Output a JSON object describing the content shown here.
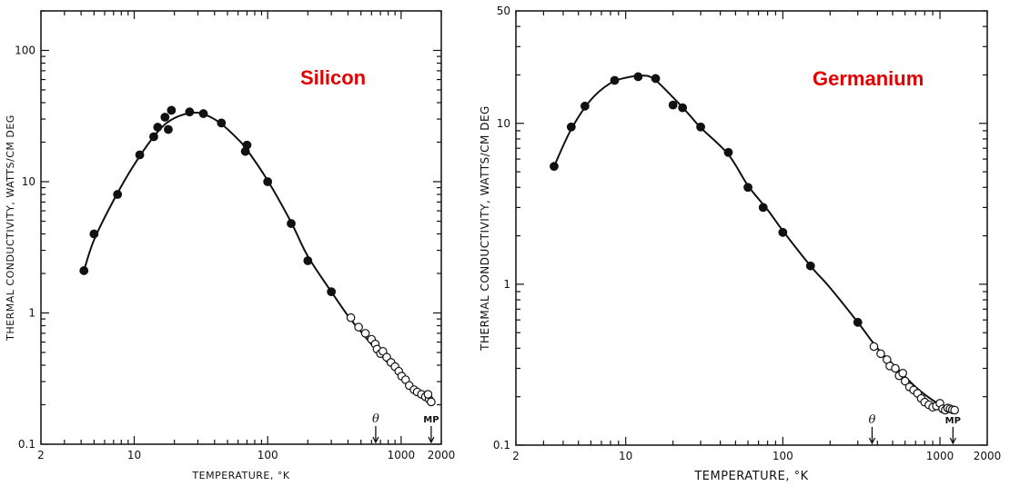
{
  "chart_data": [
    {
      "type": "scatter",
      "title": "Silicon",
      "xlabel": "TEMPERATURE, °K",
      "ylabel": "THERMAL CONDUCTIVITY, WATTS/CM DEG",
      "x_scale": "log",
      "y_scale": "log",
      "xlim": [
        2,
        2000
      ],
      "ylim": [
        0.1,
        200
      ],
      "x_ticks": [
        "2",
        "10",
        "100",
        "1000",
        "2000"
      ],
      "y_ticks": [
        "0.1",
        "1",
        "10",
        "100"
      ],
      "markers": [
        {
          "label": "θ",
          "x": 645
        },
        {
          "label": "MP",
          "x": 1680
        }
      ],
      "series": [
        {
          "marker": "filled-circle",
          "points": [
            [
              4.2,
              2.1
            ],
            [
              5,
              4.0
            ],
            [
              7.5,
              8.0
            ],
            [
              11,
              16
            ],
            [
              14,
              22
            ],
            [
              15,
              26
            ],
            [
              17,
              31
            ],
            [
              18,
              25
            ],
            [
              19,
              35
            ],
            [
              26,
              34
            ],
            [
              33,
              33
            ],
            [
              45,
              28
            ],
            [
              70,
              19
            ],
            [
              68,
              17
            ],
            [
              100,
              10
            ],
            [
              150,
              4.8
            ],
            [
              200,
              2.5
            ],
            [
              300,
              1.45
            ]
          ]
        },
        {
          "marker": "open-circle",
          "points": [
            [
              420,
              0.92
            ],
            [
              480,
              0.78
            ],
            [
              540,
              0.7
            ],
            [
              600,
              0.63
            ],
            [
              640,
              0.58
            ],
            [
              660,
              0.53
            ],
            [
              700,
              0.49
            ],
            [
              730,
              0.51
            ],
            [
              780,
              0.46
            ],
            [
              840,
              0.42
            ],
            [
              900,
              0.39
            ],
            [
              960,
              0.36
            ],
            [
              1010,
              0.33
            ],
            [
              1080,
              0.31
            ],
            [
              1150,
              0.28
            ],
            [
              1250,
              0.26
            ],
            [
              1320,
              0.25
            ],
            [
              1420,
              0.24
            ],
            [
              1520,
              0.23
            ],
            [
              1620,
              0.22
            ],
            [
              1680,
              0.21
            ],
            [
              1590,
              0.24
            ]
          ]
        }
      ],
      "curve": [
        [
          4.2,
          2.1
        ],
        [
          5,
          3.6
        ],
        [
          7,
          7.2
        ],
        [
          10,
          13.5
        ],
        [
          15,
          24
        ],
        [
          20,
          30.5
        ],
        [
          28,
          33.5
        ],
        [
          35,
          32
        ],
        [
          45,
          27.5
        ],
        [
          60,
          21
        ],
        [
          70,
          17.5
        ],
        [
          100,
          10.2
        ],
        [
          150,
          4.9
        ],
        [
          200,
          2.7
        ],
        [
          300,
          1.45
        ],
        [
          400,
          0.95
        ],
        [
          500,
          0.72
        ],
        [
          700,
          0.48
        ],
        [
          1000,
          0.33
        ],
        [
          1300,
          0.26
        ],
        [
          1700,
          0.21
        ]
      ]
    },
    {
      "type": "scatter",
      "title": "Germanium",
      "xlabel": "TEMPERATURE, °K",
      "ylabel": "THERMAL CONDUCTIVITY, WATTS/CM DEG",
      "x_scale": "log",
      "y_scale": "log",
      "xlim": [
        2,
        2000
      ],
      "ylim": [
        0.1,
        50
      ],
      "x_ticks": [
        "2",
        "10",
        "100",
        "1000",
        "2000"
      ],
      "y_ticks": [
        "0.1",
        "1",
        "10",
        "50"
      ],
      "markers": [
        {
          "label": "θ",
          "x": 370
        },
        {
          "label": "MP",
          "x": 1210
        }
      ],
      "series": [
        {
          "marker": "filled-circle",
          "points": [
            [
              3.5,
              5.4
            ],
            [
              4.5,
              9.5
            ],
            [
              5.5,
              12.8
            ],
            [
              8.5,
              18.5
            ],
            [
              12,
              19.5
            ],
            [
              15.5,
              19
            ],
            [
              20,
              13
            ],
            [
              23,
              12.5
            ],
            [
              30,
              9.5
            ],
            [
              45,
              6.6
            ],
            [
              60,
              4.0
            ],
            [
              75,
              3.0
            ],
            [
              100,
              2.1
            ],
            [
              150,
              1.3
            ],
            [
              300,
              0.58
            ]
          ]
        },
        {
          "marker": "open-circle",
          "points": [
            [
              380,
              0.41
            ],
            [
              420,
              0.37
            ],
            [
              460,
              0.34
            ],
            [
              480,
              0.31
            ],
            [
              520,
              0.3
            ],
            [
              550,
              0.27
            ],
            [
              580,
              0.28
            ],
            [
              600,
              0.25
            ],
            [
              640,
              0.23
            ],
            [
              680,
              0.22
            ],
            [
              720,
              0.21
            ],
            [
              760,
              0.195
            ],
            [
              800,
              0.185
            ],
            [
              850,
              0.178
            ],
            [
              900,
              0.172
            ],
            [
              950,
              0.175
            ],
            [
              1000,
              0.182
            ],
            [
              1040,
              0.168
            ],
            [
              1080,
              0.165
            ],
            [
              1120,
              0.17
            ],
            [
              1160,
              0.168
            ],
            [
              1200,
              0.166
            ],
            [
              1240,
              0.165
            ]
          ]
        }
      ],
      "curve": [
        [
          3.5,
          5.4
        ],
        [
          4.5,
          9.2
        ],
        [
          6,
          14
        ],
        [
          8,
          17.8
        ],
        [
          10,
          19.2
        ],
        [
          12.5,
          19.8
        ],
        [
          15,
          19
        ],
        [
          20,
          14.5
        ],
        [
          25,
          11.5
        ],
        [
          30,
          9.4
        ],
        [
          45,
          6.4
        ],
        [
          60,
          4.1
        ],
        [
          80,
          2.9
        ],
        [
          100,
          2.15
        ],
        [
          150,
          1.3
        ],
        [
          200,
          0.95
        ],
        [
          300,
          0.58
        ],
        [
          400,
          0.4
        ],
        [
          500,
          0.32
        ],
        [
          700,
          0.23
        ],
        [
          900,
          0.19
        ],
        [
          1100,
          0.17
        ],
        [
          1250,
          0.165
        ]
      ]
    }
  ],
  "colors": {
    "material_label": "#e00000",
    "ink": "#111111"
  }
}
